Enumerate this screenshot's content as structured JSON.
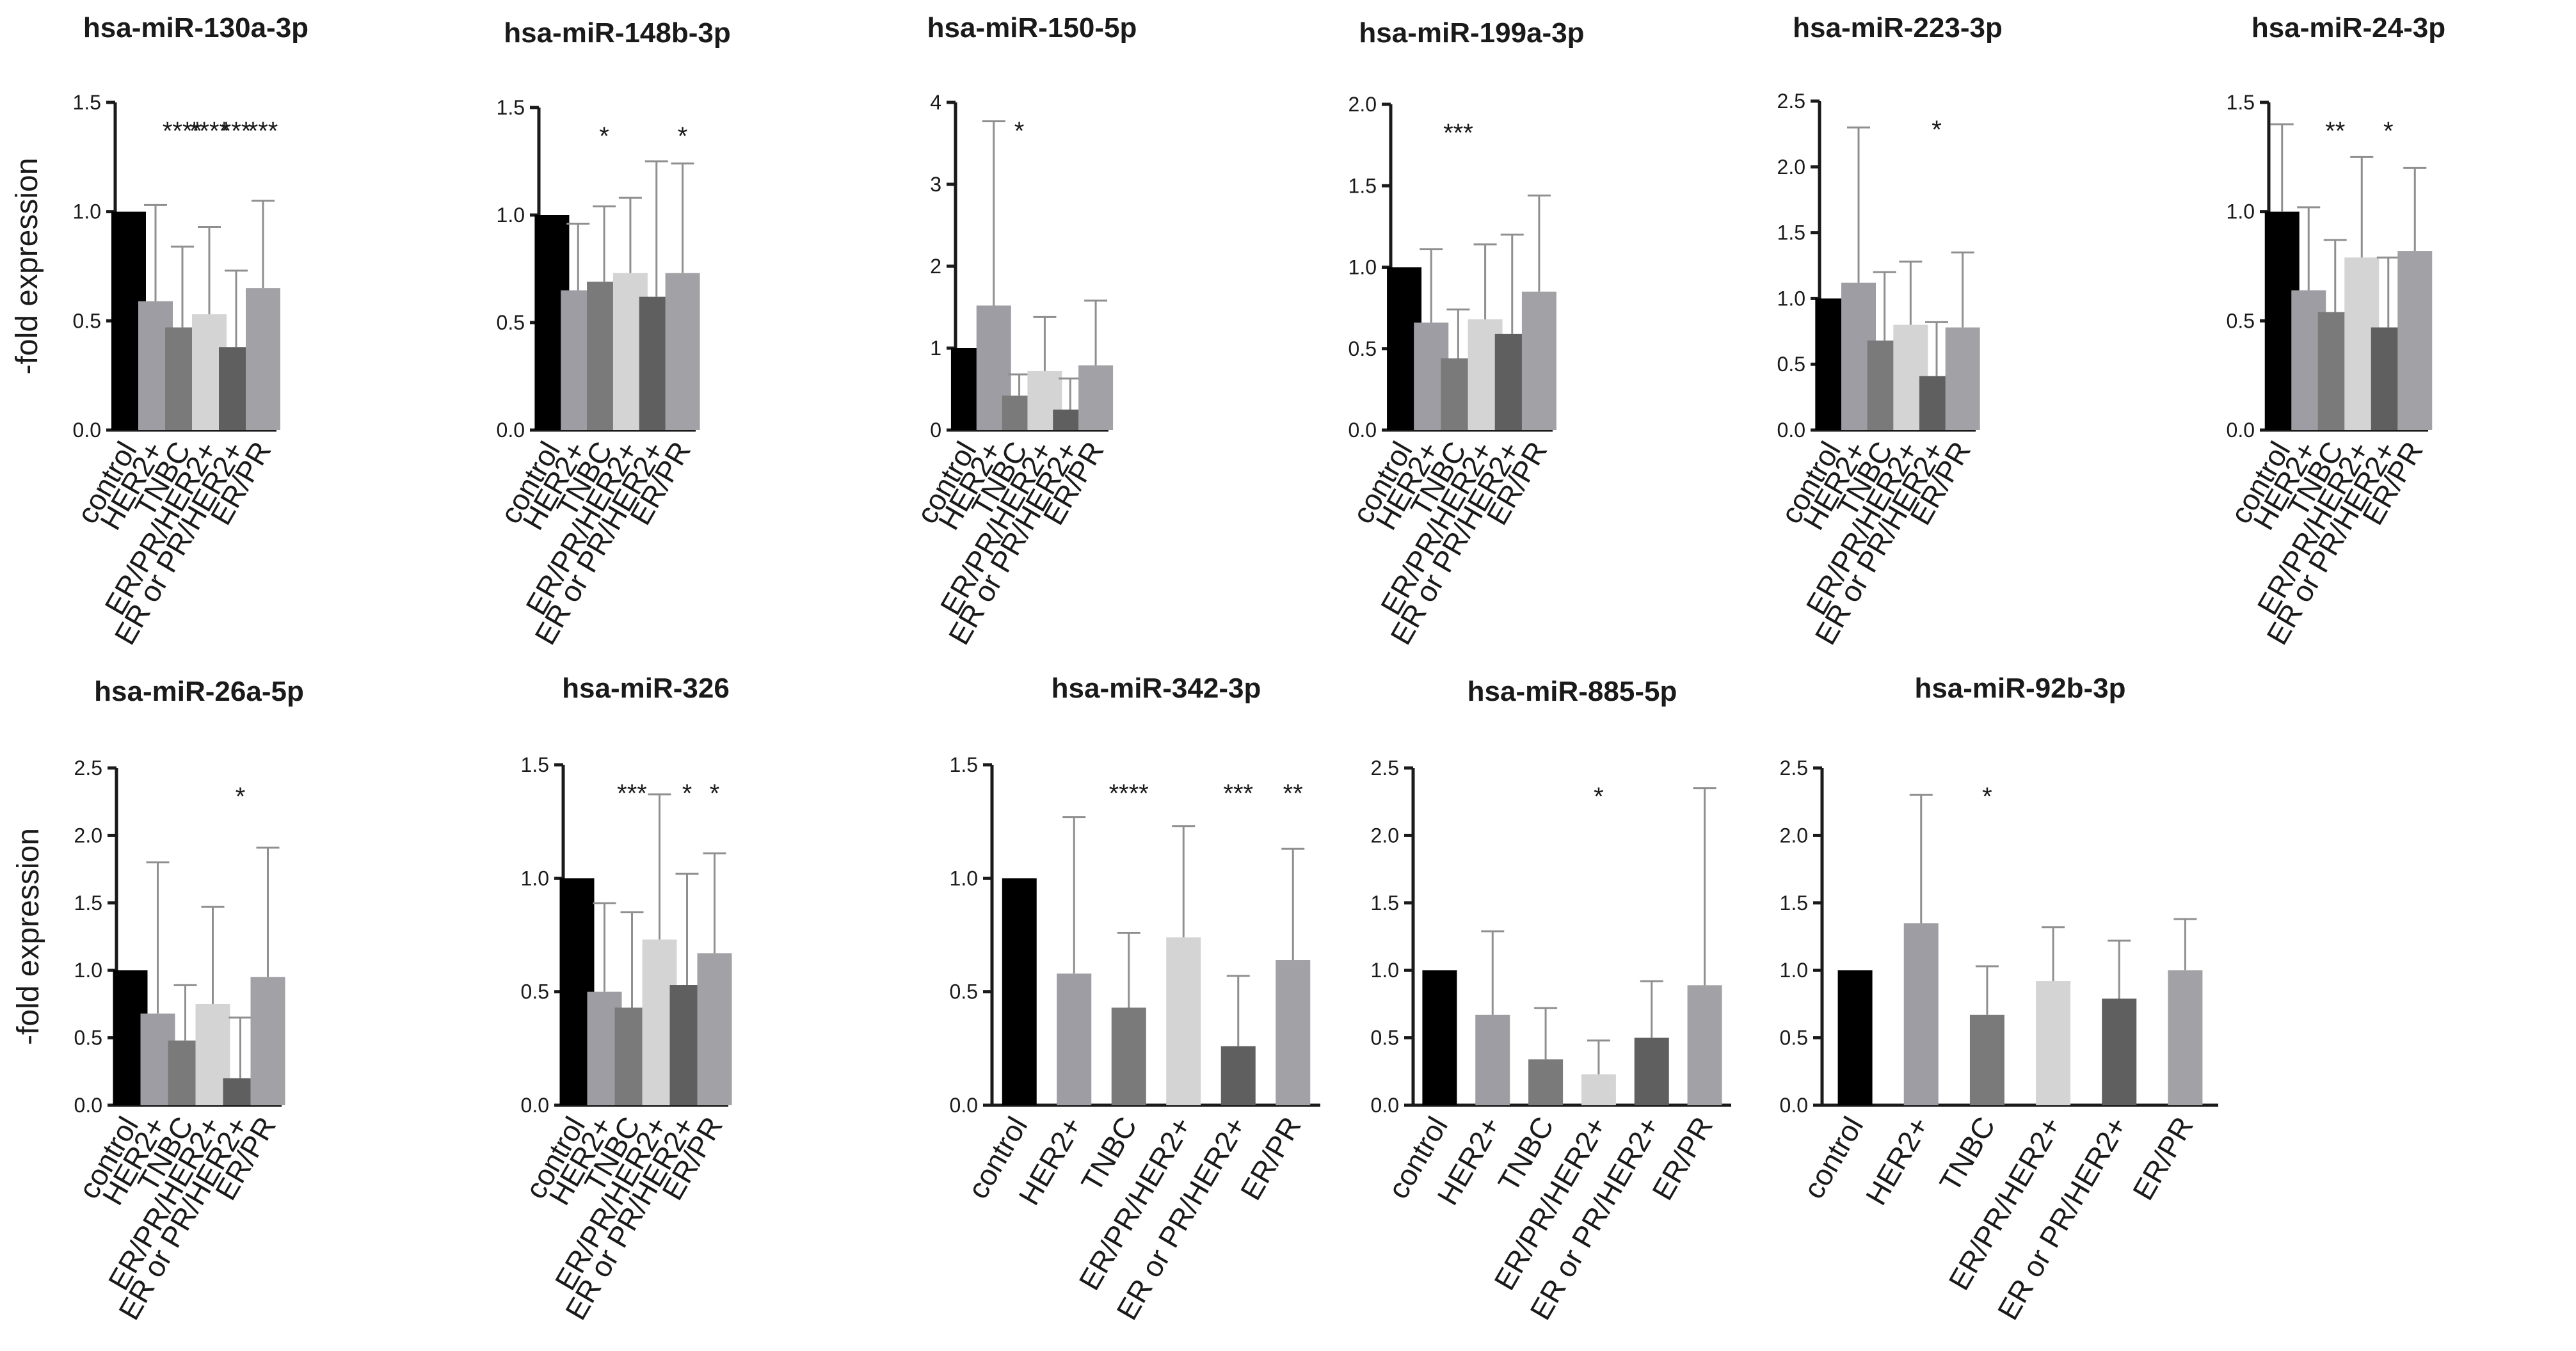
{
  "figure": {
    "y_axis_label": "-fold expression",
    "bar_colors": {
      "control": "#000000",
      "HER2+": "#9d9da3",
      "TNBC": "#7a7a7a",
      "ER/PR/HER2+": "#d4d4d4",
      "ER or PR/HER2+": "#5f5f5f",
      "ER/PR": "#a2a2a6"
    },
    "error_bar_color": "#8f8f8f"
  },
  "chart_data": [
    {
      "type": "bar",
      "title": "hsa-miR-130a-3p",
      "ylabel": "-fold expression",
      "ylim": [
        0,
        1.5
      ],
      "yticks": [
        "0.0",
        "0.5",
        "1.0",
        "1.5"
      ],
      "tick_values": [
        0,
        0.5,
        1.0,
        1.5
      ],
      "categories": [
        "control",
        "HER2+",
        "TNBC",
        "ER/PR/HER2+",
        "ER or PR/HER2+",
        "ER/PR"
      ],
      "values": [
        1.0,
        0.59,
        0.47,
        0.53,
        0.38,
        0.65
      ],
      "error_upper": [
        0,
        1.03,
        0.84,
        0.93,
        0.73,
        1.05
      ],
      "significance": [
        "",
        "",
        "****",
        "****",
        "***",
        "***"
      ]
    },
    {
      "type": "bar",
      "title": "hsa-miR-148b-3p",
      "ylabel": "",
      "ylim": [
        0,
        1.5
      ],
      "yticks": [
        "0.0",
        "0.5",
        "1.0",
        "1.5"
      ],
      "tick_values": [
        0,
        0.5,
        1.0,
        1.5
      ],
      "categories": [
        "control",
        "HER2+",
        "TNBC",
        "ER/PR/HER2+",
        "ER or PR/HER2+",
        "ER/PR"
      ],
      "values": [
        1.0,
        0.65,
        0.69,
        0.73,
        0.62,
        0.73
      ],
      "error_upper": [
        0,
        0.96,
        1.04,
        1.08,
        1.25,
        1.24
      ],
      "significance": [
        "",
        "",
        "*",
        "",
        "",
        "*"
      ]
    },
    {
      "type": "bar",
      "title": "hsa-miR-150-5p",
      "ylabel": "",
      "ylim": [
        0,
        4
      ],
      "yticks": [
        "0",
        "1",
        "2",
        "3",
        "4"
      ],
      "tick_values": [
        0,
        1,
        2,
        3,
        4
      ],
      "categories": [
        "control",
        "HER2+",
        "TNBC",
        "ER/PR/HER2+",
        "ER or PR/HER2+",
        "ER/PR"
      ],
      "values": [
        1.0,
        1.52,
        0.42,
        0.72,
        0.25,
        0.79
      ],
      "error_upper": [
        0,
        3.77,
        0.68,
        1.38,
        0.63,
        1.58
      ],
      "significance": [
        "",
        "",
        "*",
        "",
        "",
        ""
      ]
    },
    {
      "type": "bar",
      "title": "hsa-miR-199a-3p",
      "ylabel": "",
      "ylim": [
        0,
        2.0
      ],
      "yticks": [
        "0.0",
        "0.5",
        "1.0",
        "1.5",
        "2.0"
      ],
      "tick_values": [
        0,
        0.5,
        1.0,
        1.5,
        2.0
      ],
      "categories": [
        "control",
        "HER2+",
        "TNBC",
        "ER/PR/HER2+",
        "ER or PR/HER2+",
        "ER/PR"
      ],
      "values": [
        1.0,
        0.66,
        0.44,
        0.68,
        0.59,
        0.85
      ],
      "error_upper": [
        0,
        1.11,
        0.74,
        1.14,
        1.2,
        1.44
      ],
      "significance": [
        "",
        "",
        "***",
        "",
        "",
        ""
      ]
    },
    {
      "type": "bar",
      "title": "hsa-miR-223-3p",
      "ylabel": "",
      "ylim": [
        0,
        2.5
      ],
      "yticks": [
        "0.0",
        "0.5",
        "1.0",
        "1.5",
        "2.0",
        "2.5"
      ],
      "tick_values": [
        0,
        0.5,
        1.0,
        1.5,
        2.0,
        2.5
      ],
      "categories": [
        "control",
        "HER2+",
        "TNBC",
        "ER/PR/HER2+",
        "ER or PR/HER2+",
        "ER/PR"
      ],
      "values": [
        1.0,
        1.12,
        0.68,
        0.8,
        0.41,
        0.78
      ],
      "error_upper": [
        0,
        2.3,
        1.2,
        1.28,
        0.82,
        1.35
      ],
      "significance": [
        "",
        "",
        "",
        "",
        "*",
        ""
      ]
    },
    {
      "type": "bar",
      "title": "hsa-miR-24-3p",
      "ylabel": "",
      "ylim": [
        0,
        1.5
      ],
      "yticks": [
        "0.0",
        "0.5",
        "1.0",
        "1.5"
      ],
      "tick_values": [
        0,
        0.5,
        1.0,
        1.5
      ],
      "categories": [
        "control",
        "HER2+",
        "TNBC",
        "ER/PR/HER2+",
        "ER or PR/HER2+",
        "ER/PR"
      ],
      "values": [
        1.0,
        0.64,
        0.54,
        0.79,
        0.47,
        0.82
      ],
      "error_upper": [
        1.4,
        1.02,
        0.87,
        1.25,
        0.79,
        1.2
      ],
      "significance": [
        "",
        "",
        "**",
        "",
        "*",
        ""
      ]
    },
    {
      "type": "bar",
      "title": "hsa-miR-26a-5p",
      "ylabel": "-fold expression",
      "ylim": [
        0,
        2.5
      ],
      "yticks": [
        "0.0",
        "0.5",
        "1.0",
        "1.5",
        "2.0",
        "2.5"
      ],
      "tick_values": [
        0,
        0.5,
        1.0,
        1.5,
        2.0,
        2.5
      ],
      "categories": [
        "control",
        "HER2+",
        "TNBC",
        "ER/PR/HER2+",
        "ER or PR/HER2+",
        "ER/PR"
      ],
      "values": [
        1.0,
        0.68,
        0.48,
        0.75,
        0.2,
        0.95
      ],
      "error_upper": [
        0,
        1.8,
        0.89,
        1.47,
        0.65,
        1.91
      ],
      "significance": [
        "",
        "",
        "",
        "",
        "*",
        ""
      ]
    },
    {
      "type": "bar",
      "title": "hsa-miR-326",
      "ylabel": "",
      "ylim": [
        0,
        1.5
      ],
      "yticks": [
        "0.0",
        "0.5",
        "1.0",
        "1.5"
      ],
      "tick_values": [
        0,
        0.5,
        1.0,
        1.5
      ],
      "categories": [
        "control",
        "HER2+",
        "TNBC",
        "ER/PR/HER2+",
        "ER or PR/HER2+",
        "ER/PR"
      ],
      "values": [
        1.0,
        0.5,
        0.43,
        0.73,
        0.53,
        0.67
      ],
      "error_upper": [
        0,
        0.89,
        0.85,
        1.37,
        1.02,
        1.11
      ],
      "significance": [
        "",
        "",
        "***",
        "",
        "*",
        "*"
      ]
    },
    {
      "type": "bar",
      "title": "hsa-miR-342-3p",
      "ylabel": "",
      "ylim": [
        0,
        1.5
      ],
      "yticks": [
        "0.0",
        "0.5",
        "1.0",
        "1.5"
      ],
      "tick_values": [
        0,
        0.5,
        1.0,
        1.5
      ],
      "categories": [
        "control",
        "HER2+",
        "TNBC",
        "ER/PR/HER2+",
        "ER or PR/HER2+",
        "ER/PR"
      ],
      "values": [
        1.0,
        0.58,
        0.43,
        0.74,
        0.26,
        0.64
      ],
      "error_upper": [
        0,
        1.27,
        0.76,
        1.23,
        0.57,
        1.13
      ],
      "significance": [
        "",
        "",
        "****",
        "",
        "***",
        "**"
      ]
    },
    {
      "type": "bar",
      "title": "hsa-miR-885-5p",
      "ylabel": "",
      "ylim": [
        0,
        2.5
      ],
      "yticks": [
        "0.0",
        "0.5",
        "1.0",
        "1.5",
        "2.0",
        "2.5"
      ],
      "tick_values": [
        0,
        0.5,
        1.0,
        1.5,
        2.0,
        2.5
      ],
      "categories": [
        "control",
        "HER2+",
        "TNBC",
        "ER/PR/HER2+",
        "ER or PR/HER2+",
        "ER/PR"
      ],
      "values": [
        1.0,
        0.67,
        0.34,
        0.23,
        0.5,
        0.89
      ],
      "error_upper": [
        0,
        1.29,
        0.72,
        0.48,
        0.92,
        2.35
      ],
      "significance": [
        "",
        "",
        "",
        "*",
        "",
        ""
      ]
    },
    {
      "type": "bar",
      "title": "hsa-miR-92b-3p",
      "ylabel": "",
      "ylim": [
        0,
        2.5
      ],
      "yticks": [
        "0.0",
        "0.5",
        "1.0",
        "1.5",
        "2.0",
        "2.5"
      ],
      "tick_values": [
        0,
        0.5,
        1.0,
        1.5,
        2.0,
        2.5
      ],
      "categories": [
        "control",
        "HER2+",
        "TNBC",
        "ER/PR/HER2+",
        "ER or PR/HER2+",
        "ER/PR"
      ],
      "values": [
        1.0,
        1.35,
        0.67,
        0.92,
        0.79,
        1.0
      ],
      "error_upper": [
        0,
        2.3,
        1.03,
        1.32,
        1.22,
        1.38
      ],
      "significance": [
        "",
        "",
        "*",
        "",
        "",
        ""
      ]
    }
  ]
}
